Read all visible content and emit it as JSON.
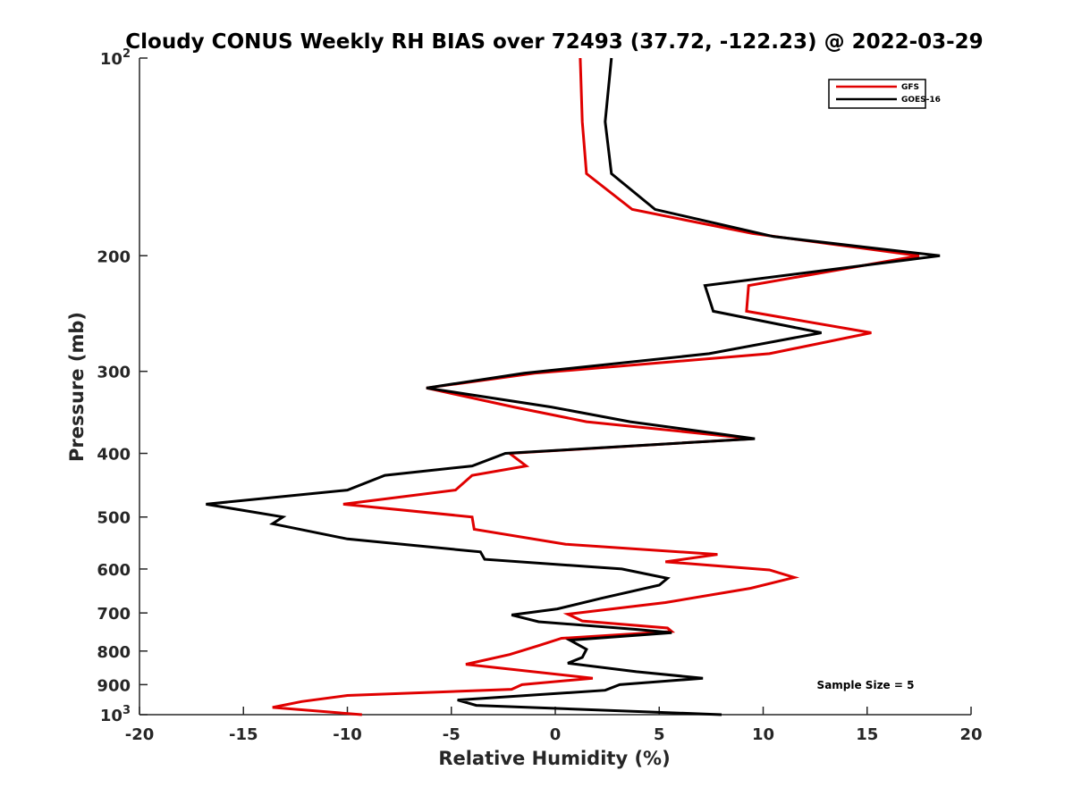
{
  "chart_data": {
    "type": "line",
    "title": "Cloudy CONUS Weekly RH BIAS over 72493 (37.72, -122.23) @ 2022-03-29",
    "xlabel": "Relative Humidity (%)",
    "ylabel": "Pressure (mb)",
    "xlim": [
      -20,
      20
    ],
    "ylim": [
      100,
      1000
    ],
    "y_scale": "log",
    "y_reversed": true,
    "grid": false,
    "legend_position": "top-right",
    "x_ticks": [
      {
        "value": -20,
        "label": "-20"
      },
      {
        "value": -15,
        "label": "-15"
      },
      {
        "value": -10,
        "label": "-10"
      },
      {
        "value": -5,
        "label": "-5"
      },
      {
        "value": 0,
        "label": "0"
      },
      {
        "value": 5,
        "label": "5"
      },
      {
        "value": 10,
        "label": "10"
      },
      {
        "value": 15,
        "label": "15"
      },
      {
        "value": 20,
        "label": "20"
      }
    ],
    "y_ticks": [
      {
        "value": 100,
        "base": "10",
        "exp": "2"
      },
      {
        "value": 200,
        "base": "200",
        "exp": ""
      },
      {
        "value": 300,
        "base": "300",
        "exp": ""
      },
      {
        "value": 400,
        "base": "400",
        "exp": ""
      },
      {
        "value": 500,
        "base": "500",
        "exp": ""
      },
      {
        "value": 600,
        "base": "600",
        "exp": ""
      },
      {
        "value": 700,
        "base": "700",
        "exp": ""
      },
      {
        "value": 800,
        "base": "800",
        "exp": ""
      },
      {
        "value": 900,
        "base": "900",
        "exp": ""
      },
      {
        "value": 1000,
        "base": "10",
        "exp": "3"
      }
    ],
    "annotation": "Sample Size = 5",
    "series": [
      {
        "name": "GFS",
        "color": "#e00000",
        "points": [
          [
            1.2,
            100
          ],
          [
            1.3,
            125
          ],
          [
            1.5,
            150
          ],
          [
            3.7,
            170
          ],
          [
            9.5,
            185
          ],
          [
            17.5,
            200
          ],
          [
            9.3,
            222
          ],
          [
            9.2,
            243
          ],
          [
            15.2,
            262
          ],
          [
            10.3,
            282
          ],
          [
            -1.0,
            302
          ],
          [
            -6.2,
            318
          ],
          [
            -2.0,
            340
          ],
          [
            1.5,
            358
          ],
          [
            9.5,
            380
          ],
          [
            -2.2,
            400
          ],
          [
            -1.4,
            418
          ],
          [
            -4.0,
            432
          ],
          [
            -4.8,
            455
          ],
          [
            -10.2,
            478
          ],
          [
            -4.0,
            500
          ],
          [
            -3.9,
            522
          ],
          [
            0.5,
            550
          ],
          [
            7.8,
            570
          ],
          [
            5.3,
            585
          ],
          [
            10.3,
            602
          ],
          [
            11.5,
            618
          ],
          [
            9.4,
            642
          ],
          [
            5.3,
            675
          ],
          [
            0.6,
            703
          ],
          [
            1.3,
            720
          ],
          [
            5.4,
            738
          ],
          [
            5.6,
            747
          ],
          [
            0.3,
            765
          ],
          [
            -0.8,
            785
          ],
          [
            -2.2,
            810
          ],
          [
            -4.3,
            838
          ],
          [
            1.8,
            880
          ],
          [
            -1.6,
            900
          ],
          [
            -2.1,
            915
          ],
          [
            -10.0,
            935
          ],
          [
            -12.2,
            955
          ],
          [
            -13.6,
            975
          ],
          [
            -9.3,
            1000
          ]
        ]
      },
      {
        "name": "GOES-16",
        "color": "#000000",
        "points": [
          [
            2.7,
            100
          ],
          [
            2.4,
            125
          ],
          [
            2.7,
            150
          ],
          [
            4.8,
            170
          ],
          [
            10.5,
            187
          ],
          [
            18.5,
            200
          ],
          [
            7.2,
            222
          ],
          [
            7.6,
            243
          ],
          [
            12.8,
            262
          ],
          [
            7.4,
            282
          ],
          [
            -1.5,
            302
          ],
          [
            -6.2,
            318
          ],
          [
            -0.2,
            340
          ],
          [
            3.6,
            358
          ],
          [
            9.6,
            380
          ],
          [
            -2.4,
            400
          ],
          [
            -4.0,
            418
          ],
          [
            -8.2,
            432
          ],
          [
            -10.0,
            455
          ],
          [
            -16.8,
            478
          ],
          [
            -13.1,
            500
          ],
          [
            -13.6,
            512
          ],
          [
            -10.0,
            540
          ],
          [
            -3.6,
            565
          ],
          [
            -3.4,
            580
          ],
          [
            3.2,
            600
          ],
          [
            5.4,
            620
          ],
          [
            5.0,
            635
          ],
          [
            2.2,
            665
          ],
          [
            0.1,
            690
          ],
          [
            -2.1,
            705
          ],
          [
            -0.8,
            722
          ],
          [
            4.0,
            742
          ],
          [
            5.6,
            750
          ],
          [
            0.7,
            770
          ],
          [
            1.5,
            795
          ],
          [
            1.3,
            818
          ],
          [
            0.6,
            835
          ],
          [
            3.9,
            860
          ],
          [
            7.1,
            880
          ],
          [
            3.1,
            900
          ],
          [
            2.4,
            918
          ],
          [
            -4.7,
            950
          ],
          [
            -3.8,
            968
          ],
          [
            8.0,
            1000
          ]
        ]
      }
    ]
  }
}
